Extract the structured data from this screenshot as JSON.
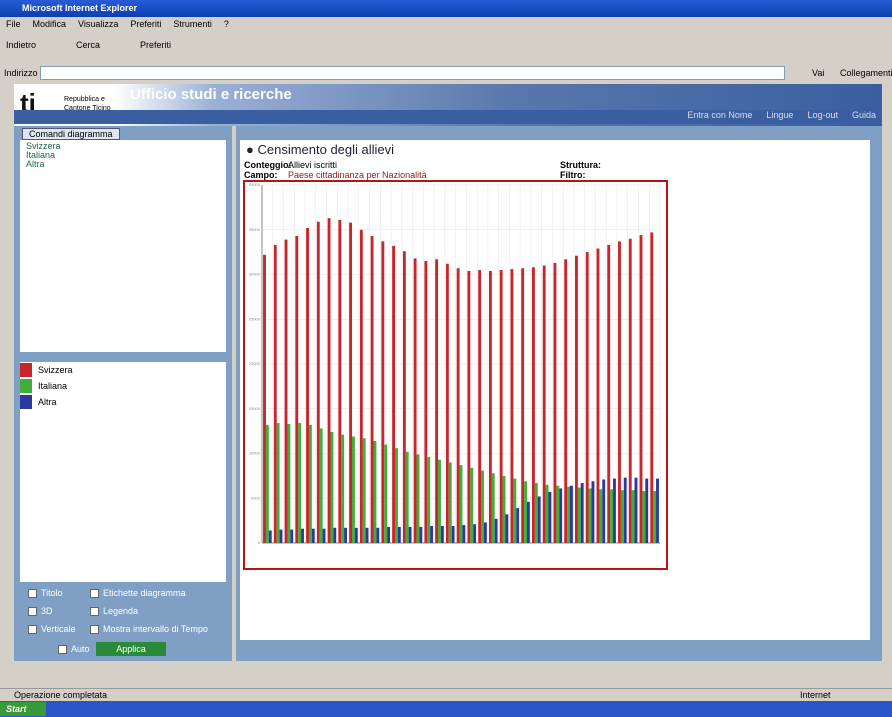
{
  "window_title": "Microsoft Internet Explorer",
  "menu": [
    "File",
    "Modifica",
    "Visualizza",
    "Preferiti",
    "Strumenti",
    "?"
  ],
  "toolbar": [
    "Indietro",
    "Cerca",
    "Preferiti"
  ],
  "address_label": "Indirizzo",
  "go": "Vai",
  "links": "Collegamenti",
  "header": {
    "logo": "ti",
    "org": [
      "Repubblica e",
      "Cantone Ticino"
    ],
    "title": "Ufficio studi e ricerche",
    "nav": [
      "Entra con Nome",
      "Lingue",
      "Log-out",
      "Guida"
    ]
  },
  "left_panel": {
    "tab": "Comandi diagramma",
    "tree": [
      "Svizzera",
      "Italiana",
      "Altra"
    ],
    "options": [
      "Titolo",
      "Etichette diagramma",
      "3D",
      "Legenda",
      "Verticale",
      "Mostra intervallo di Tempo"
    ],
    "auto": "Auto",
    "apply": "Applica"
  },
  "report": {
    "title": "Censimento degli allievi",
    "fields": [
      {
        "label": "Conteggio:",
        "value": "Allievi iscritti"
      },
      {
        "label": "Campo:",
        "value": "Paese cittadinanza per Nazionalità"
      }
    ],
    "right_fields": [
      "Struttura:",
      "Filtro:"
    ]
  },
  "chart_data": {
    "type": "bar",
    "categories": [
      null,
      null,
      null,
      null,
      null,
      null,
      null,
      null,
      null,
      null,
      null,
      null,
      null,
      null,
      null,
      null,
      null,
      null,
      null,
      null,
      null,
      null,
      null,
      null,
      null,
      null,
      null,
      null,
      null,
      null,
      null,
      null,
      null,
      null,
      null,
      null,
      null
    ],
    "series": [
      {
        "name": "Svizzera",
        "color": "#c8262a",
        "values": [
          32200,
          33300,
          33900,
          34300,
          35200,
          35900,
          36300,
          36100,
          35800,
          35000,
          34300,
          33700,
          33200,
          32600,
          31800,
          31500,
          31700,
          31200,
          30700,
          30400,
          30500,
          30400,
          30500,
          30600,
          30700,
          30800,
          31000,
          31300,
          31700,
          32100,
          32500,
          32900,
          33300,
          33700,
          34000,
          34400,
          34700
        ]
      },
      {
        "name": "Italiana",
        "color": "#3fae3a",
        "values": [
          13200,
          13400,
          13300,
          13400,
          13200,
          12800,
          12400,
          12100,
          11900,
          11700,
          11400,
          11000,
          10600,
          10200,
          9900,
          9600,
          9300,
          9000,
          8700,
          8400,
          8100,
          7800,
          7500,
          7200,
          6900,
          6700,
          6500,
          6400,
          6300,
          6200,
          6100,
          6000,
          6000,
          5900,
          5900,
          5800,
          5800
        ]
      },
      {
        "name": "Altra",
        "color": "#2a3a9a",
        "values": [
          1400,
          1500,
          1500,
          1600,
          1600,
          1600,
          1700,
          1700,
          1700,
          1700,
          1700,
          1800,
          1800,
          1800,
          1800,
          1900,
          1900,
          1900,
          2000,
          2100,
          2300,
          2700,
          3200,
          3900,
          4600,
          5200,
          5700,
          6100,
          6400,
          6700,
          6900,
          7100,
          7200,
          7300,
          7300,
          7200,
          7200
        ]
      }
    ],
    "ylim": [
      0,
      40000
    ],
    "yticks": [
      0,
      5000,
      10000,
      15000,
      20000,
      25000,
      30000,
      35000,
      40000
    ],
    "grid": true
  },
  "status": "Operazione completata",
  "zone": "Internet",
  "start": "Start"
}
